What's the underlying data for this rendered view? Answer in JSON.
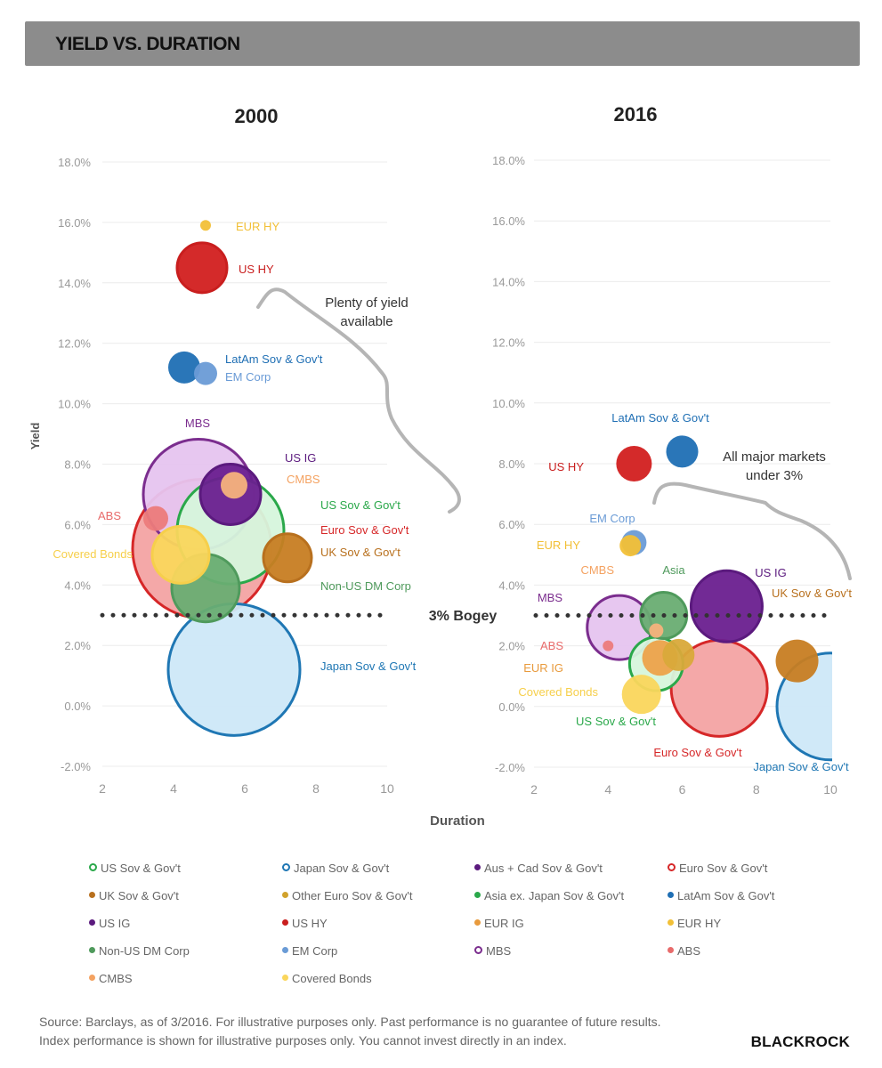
{
  "header": {
    "title": "YIELD VS. DURATION"
  },
  "chart_data": [
    {
      "type": "scatter",
      "title": "2000",
      "xlabel": "Duration",
      "ylabel": "Yield",
      "xlim": [
        2,
        10
      ],
      "ylim": [
        -2,
        18
      ],
      "x_ticks": [
        "2",
        "4",
        "6",
        "8",
        "10"
      ],
      "y_ticks": [
        "-2.0%",
        "0.0%",
        "2.0%",
        "4.0%",
        "6.0%",
        "8.0%",
        "10.0%",
        "12.0%",
        "14.0%",
        "16.0%",
        "18.0%"
      ],
      "reference_line": {
        "y": 3,
        "label": "3% Bogey"
      },
      "annotation": "Plenty of yield available",
      "points": [
        {
          "name": "US Sov & Gov't",
          "x": 5.6,
          "y": 5.8,
          "size": 60,
          "color": "#2aa84a",
          "fill": "#d6f5dc",
          "label": "US Sov & Gov't"
        },
        {
          "name": "Japan Sov & Gov't",
          "x": 5.7,
          "y": 1.2,
          "size": 74,
          "color": "#1f77b4",
          "fill": "#cde8f8",
          "label": "Japan Sov & Gov't"
        },
        {
          "name": "Euro Sov & Gov't",
          "x": 4.8,
          "y": 5.2,
          "size": 78,
          "color": "#d62728",
          "fill": "#f3a3a3",
          "label": "Euro Sov & Gov't"
        },
        {
          "name": "UK Sov & Gov't",
          "x": 7.2,
          "y": 4.9,
          "size": 27,
          "color": "#b8701e",
          "fill": "#c77d22",
          "label": "UK Sov & Gov't"
        },
        {
          "name": "Non-US DM Corp",
          "x": 4.9,
          "y": 3.9,
          "size": 38,
          "color": "#4f9a5c",
          "fill": "#69ad72",
          "label": "Non-US DM Corp"
        },
        {
          "name": "US IG",
          "x": 5.6,
          "y": 7.0,
          "size": 34,
          "color": "#5b1a7e",
          "fill": "#6a1f8f",
          "label": "US IG"
        },
        {
          "name": "CMBS",
          "x": 5.7,
          "y": 7.3,
          "size": 15,
          "color": "#f4a261",
          "fill": "#f6b27c",
          "label": "CMBS"
        },
        {
          "name": "MBS",
          "x": 4.7,
          "y": 7.0,
          "size": 62,
          "color": "#7b2d8e",
          "fill": "#e6c4ef",
          "label": "MBS"
        },
        {
          "name": "ABS",
          "x": 3.5,
          "y": 6.2,
          "size": 14,
          "color": "#e86b6b",
          "fill": "#ec7b7b",
          "label": "ABS"
        },
        {
          "name": "Covered Bonds",
          "x": 4.2,
          "y": 5.0,
          "size": 32,
          "color": "#f6cf4b",
          "fill": "#fad65c",
          "label": "Covered Bonds"
        },
        {
          "name": "LatAm Sov & Gov't",
          "x": 4.3,
          "y": 11.2,
          "size": 18,
          "color": "#1f6fb4",
          "fill": "#1f6fb4",
          "label": "LatAm Sov & Gov't"
        },
        {
          "name": "EM Corp",
          "x": 4.9,
          "y": 11.0,
          "size": 13,
          "color": "#6a9bd6",
          "fill": "#6a9bd6",
          "label": "EM Corp"
        },
        {
          "name": "US HY",
          "x": 4.8,
          "y": 14.5,
          "size": 28,
          "color": "#c91e1e",
          "fill": "#d21f1f",
          "label": "US HY"
        },
        {
          "name": "EUR HY",
          "x": 4.9,
          "y": 15.9,
          "size": 6,
          "color": "#f2c037",
          "fill": "#f2c037",
          "label": "EUR HY"
        }
      ]
    },
    {
      "type": "scatter",
      "title": "2016",
      "xlabel": "Duration",
      "ylabel": "Yield",
      "xlim": [
        2,
        10
      ],
      "ylim": [
        -2,
        18
      ],
      "x_ticks": [
        "2",
        "4",
        "6",
        "8",
        "10"
      ],
      "y_ticks": [
        "-2.0%",
        "0.0%",
        "2.0%",
        "4.0%",
        "6.0%",
        "8.0%",
        "10.0%",
        "12.0%",
        "14.0%",
        "16.0%",
        "18.0%"
      ],
      "reference_line": {
        "y": 3,
        "label": "3% Bogey"
      },
      "annotation": "All major markets under 3%",
      "points": [
        {
          "name": "US Sov & Gov't",
          "x": 5.3,
          "y": 1.4,
          "size": 30,
          "color": "#2aa84a",
          "fill": "#d6f5dc",
          "label": "US Sov & Gov't"
        },
        {
          "name": "Japan Sov & Gov't",
          "x": 10.0,
          "y": 0.0,
          "size": 60,
          "color": "#1f77b4",
          "fill": "#cde8f8",
          "label": "Japan Sov & Gov't"
        },
        {
          "name": "Euro Sov & Gov't",
          "x": 7.0,
          "y": 0.6,
          "size": 54,
          "color": "#d62728",
          "fill": "#f3a3a3",
          "label": "Euro Sov & Gov't"
        },
        {
          "name": "UK Sov & Gov't",
          "x": 9.1,
          "y": 1.5,
          "size": 24,
          "color": "#b8701e",
          "fill": "#c77d22",
          "label": "UK Sov & Gov't"
        },
        {
          "name": "Asia",
          "x": 5.5,
          "y": 3.0,
          "size": 26,
          "color": "#4f9a5c",
          "fill": "#69ad72",
          "label": "Asia"
        },
        {
          "name": "US IG",
          "x": 7.2,
          "y": 3.3,
          "size": 40,
          "color": "#5b1a7e",
          "fill": "#6a1f8f",
          "label": "US IG"
        },
        {
          "name": "LatAm Sov & Gov't",
          "x": 6.0,
          "y": 8.4,
          "size": 18,
          "color": "#1f6fb4",
          "fill": "#1f6fb4",
          "label": "LatAm Sov & Gov't"
        },
        {
          "name": "US HY",
          "x": 4.7,
          "y": 8.0,
          "size": 20,
          "color": "#c91e1e",
          "fill": "#d21f1f",
          "label": "US HY"
        },
        {
          "name": "EM Corp",
          "x": 4.7,
          "y": 5.4,
          "size": 14,
          "color": "#6a9bd6",
          "fill": "#6a9bd6",
          "label": "EM Corp"
        },
        {
          "name": "EUR HY",
          "x": 4.6,
          "y": 5.3,
          "size": 12,
          "color": "#f2c037",
          "fill": "#f2c037",
          "label": "EUR HY"
        },
        {
          "name": "MBS",
          "x": 4.3,
          "y": 2.6,
          "size": 36,
          "color": "#7b2d8e",
          "fill": "#e6c4ef",
          "label": "MBS"
        },
        {
          "name": "CMBS",
          "x": 5.3,
          "y": 2.5,
          "size": 8,
          "color": "#f4a261",
          "fill": "#f6b27c",
          "label": "CMBS"
        },
        {
          "name": "ABS",
          "x": 4.0,
          "y": 2.0,
          "size": 6,
          "color": "#e86b6b",
          "fill": "#ec7b7b",
          "label": "ABS"
        },
        {
          "name": "EUR IG",
          "x": 5.4,
          "y": 1.6,
          "size": 20,
          "color": "#e89a3c",
          "fill": "#eda24a",
          "label": "EUR IG"
        },
        {
          "name": "Other Euro Sov & Gov't",
          "x": 5.9,
          "y": 1.7,
          "size": 18,
          "color": "#d1a22c",
          "fill": "#d9a93a",
          "label": ""
        },
        {
          "name": "Covered Bonds",
          "x": 4.9,
          "y": 0.4,
          "size": 22,
          "color": "#f6cf4b",
          "fill": "#fad65c",
          "label": "Covered Bonds"
        }
      ]
    }
  ],
  "legend": {
    "items": [
      {
        "label": "US Sov & Gov't",
        "color": "#2aa84a",
        "ring": true
      },
      {
        "label": "Japan Sov & Gov't",
        "color": "#1f77b4",
        "ring": true
      },
      {
        "label": "Aus + Cad Sov & Gov't",
        "color": "#5b1a7e",
        "ring": false
      },
      {
        "label": "Euro Sov & Gov't",
        "color": "#d62728",
        "ring": true
      },
      {
        "label": "UK Sov & Gov't",
        "color": "#b8701e",
        "ring": false
      },
      {
        "label": "Other Euro Sov & Gov't",
        "color": "#d1a22c",
        "ring": false
      },
      {
        "label": "Asia ex. Japan Sov & Gov't",
        "color": "#2aa84a",
        "ring": false
      },
      {
        "label": "LatAm Sov & Gov't",
        "color": "#1f6fb4",
        "ring": false
      },
      {
        "label": "US IG",
        "color": "#5b1a7e",
        "ring": false
      },
      {
        "label": "US HY",
        "color": "#c91e1e",
        "ring": false
      },
      {
        "label": "EUR IG",
        "color": "#e89a3c",
        "ring": false
      },
      {
        "label": "EUR HY",
        "color": "#f2c037",
        "ring": false
      },
      {
        "label": "Non-US DM Corp",
        "color": "#4f9a5c",
        "ring": false
      },
      {
        "label": "EM Corp",
        "color": "#6a9bd6",
        "ring": false
      },
      {
        "label": "MBS",
        "color": "#7b2d8e",
        "ring": true
      },
      {
        "label": "ABS",
        "color": "#e86b6b",
        "ring": false
      },
      {
        "label": "CMBS",
        "color": "#f4a261",
        "ring": false
      },
      {
        "label": "Covered Bonds",
        "color": "#fad65c",
        "ring": false
      }
    ]
  },
  "footer": {
    "line1": "Source: Barclays, as of 3/2016. For illustrative purposes only. Past performance is no guarantee of future results.",
    "line2": "Index performance is shown for illustrative purposes only.  You cannot invest directly in an index."
  },
  "logo": {
    "text": "BLACKROCK"
  }
}
